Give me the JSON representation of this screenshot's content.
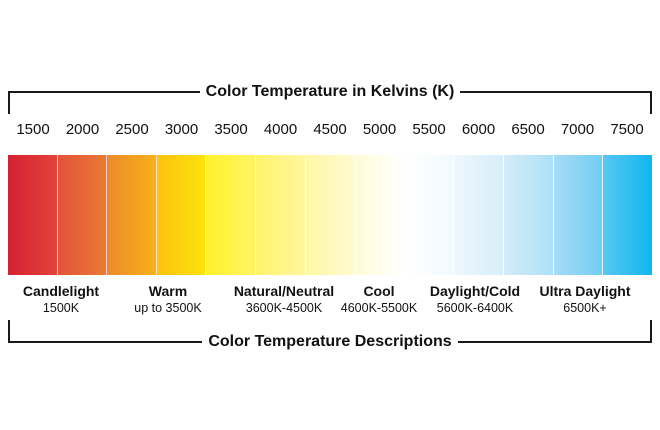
{
  "top_title": "Color Temperature in Kelvins (K)",
  "bottom_title": "Color Temperature Descriptions",
  "ticks": [
    "1500",
    "2000",
    "2500",
    "3000",
    "3500",
    "4000",
    "4500",
    "5000",
    "5500",
    "6000",
    "6500",
    "7000",
    "7500"
  ],
  "segment_colors": [
    "linear-gradient(90deg, #d52132, #e2433a)",
    "linear-gradient(90deg, #e2523a, #ea7a34)",
    "linear-gradient(90deg, #ec8a2b, #f7b119)",
    "linear-gradient(90deg, #fbc30d, #fde20e)",
    "linear-gradient(90deg, #fff12a, #fff566)",
    "linear-gradient(90deg, #fff36a, #fff6a0)",
    "linear-gradient(90deg, #fff7a6, #fffbd0)",
    "linear-gradient(90deg, #fffcd8, #ffffff)",
    "linear-gradient(90deg, #ffffff, #f2f9fd)",
    "linear-gradient(90deg, #eef7fc, #d6eefa)",
    "linear-gradient(90deg, #d3ecf9, #ade0f7)",
    "linear-gradient(90deg, #a6dcf6, #72cdf3)",
    "linear-gradient(90deg, #58c7f2, #10b6ee)"
  ],
  "descriptions": [
    {
      "name": "Candlelight",
      "range": "1500K"
    },
    {
      "name": "Warm",
      "range": "up to 3500K"
    },
    {
      "name": "Natural/Neutral",
      "range": "3600K-4500K"
    },
    {
      "name": "Cool",
      "range": "4600K-5500K"
    },
    {
      "name": "Daylight/Cold",
      "range": "5600K-6400K"
    },
    {
      "name": "Ultra Daylight",
      "range": "6500K+"
    }
  ]
}
